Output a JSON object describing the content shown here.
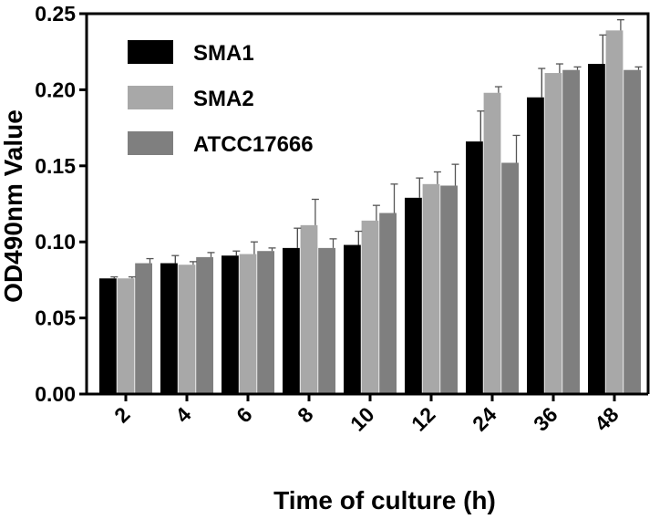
{
  "chart_data": {
    "type": "bar",
    "title": "",
    "xlabel": "Time of culture (h)",
    "ylabel": "OD490nm Value",
    "ylim": [
      0,
      0.25
    ],
    "yticks": [
      "0.00",
      "0.05",
      "0.10",
      "0.15",
      "0.20",
      "0.25"
    ],
    "ytick_values": [
      0,
      0.05,
      0.1,
      0.15,
      0.2,
      0.25
    ],
    "categories": [
      "2",
      "4",
      "6",
      "8",
      "10",
      "12",
      "24",
      "36",
      "48"
    ],
    "legend_position": "top-left",
    "grid": false,
    "series": [
      {
        "name": "SMA1",
        "color": "#000000",
        "values": [
          0.076,
          0.086,
          0.091,
          0.096,
          0.098,
          0.129,
          0.166,
          0.195,
          0.217
        ],
        "errors": [
          0.001,
          0.005,
          0.003,
          0.013,
          0.009,
          0.013,
          0.02,
          0.019,
          0.019
        ]
      },
      {
        "name": "SMA2",
        "color": "#a8a8a8",
        "values": [
          0.076,
          0.085,
          0.092,
          0.111,
          0.114,
          0.138,
          0.198,
          0.211,
          0.239
        ],
        "errors": [
          0.001,
          0.002,
          0.008,
          0.017,
          0.01,
          0.008,
          0.004,
          0.006,
          0.007
        ]
      },
      {
        "name": "ATCC17666",
        "color": "#7f7f7f",
        "values": [
          0.086,
          0.09,
          0.094,
          0.096,
          0.119,
          0.137,
          0.152,
          0.213,
          0.213
        ],
        "errors": [
          0.003,
          0.003,
          0.002,
          0.006,
          0.019,
          0.014,
          0.018,
          0.002,
          0.002
        ]
      }
    ]
  }
}
